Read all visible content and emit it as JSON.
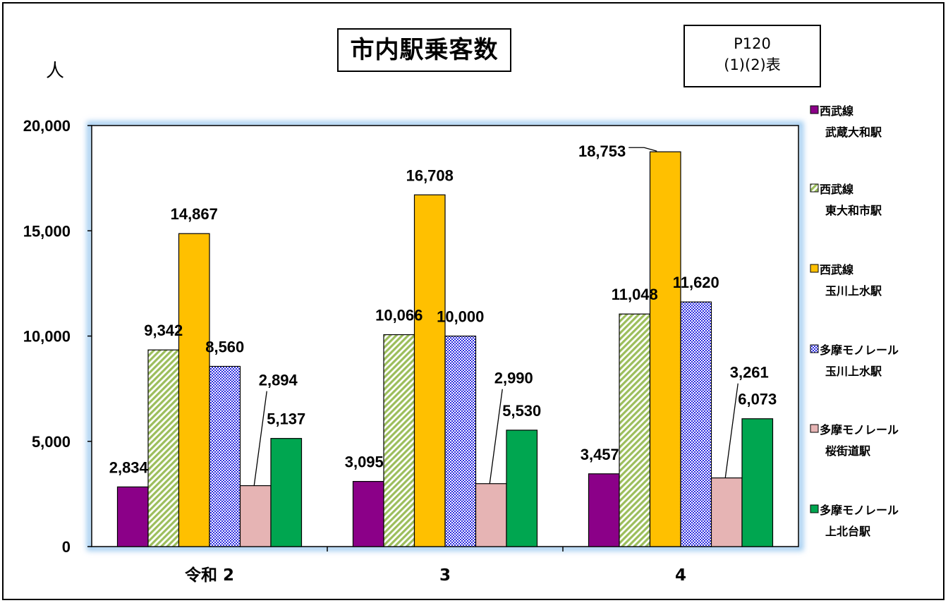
{
  "header": {
    "title": "市内駅乗客数",
    "ref_line1": "P120",
    "ref_line2": "(1)(2)表",
    "unit": "人"
  },
  "chart_data": {
    "type": "bar",
    "title": "市内駅乗客数",
    "ylabel": "人",
    "ylim": [
      0,
      20000
    ],
    "yticks": [
      0,
      5000,
      10000,
      15000,
      20000
    ],
    "ytick_labels": [
      "0",
      "5,000",
      "10,000",
      "15,000",
      "20,000"
    ],
    "categories": [
      "令和 2",
      "3",
      "4"
    ],
    "legend_position": "right",
    "series": [
      {
        "name_line1": "西武線",
        "name_line2": "武蔵大和駅",
        "color": "#8B0088",
        "values": [
          2834,
          3095,
          3457
        ],
        "labels": [
          "2,834",
          "3,095",
          "3,457"
        ]
      },
      {
        "name_line1": "西武線",
        "name_line2": "東大和市駅",
        "color": "#A6C86A",
        "values": [
          9342,
          10066,
          11048
        ],
        "labels": [
          "9,342",
          "10,066",
          "11,048"
        ]
      },
      {
        "name_line1": "西武線",
        "name_line2": "玉川上水駅",
        "color": "#FFC000",
        "values": [
          14867,
          16708,
          18753
        ],
        "labels": [
          "14,867",
          "16,708",
          "18,753"
        ]
      },
      {
        "name_line1": "多摩モノレール",
        "name_line2": "玉川上水駅",
        "color": "#4040E0",
        "values": [
          8560,
          10000,
          11620
        ],
        "labels": [
          "8,560",
          "10,000",
          "11,620"
        ]
      },
      {
        "name_line1": "多摩モノレール",
        "name_line2": "桜街道駅",
        "color": "#E6B4B4",
        "values": [
          2894,
          2990,
          3261
        ],
        "labels": [
          "2,894",
          "2,990",
          "3,261"
        ]
      },
      {
        "name_line1": "多摩モノレール",
        "name_line2": "上北台駅",
        "color": "#00A650",
        "values": [
          5137,
          5530,
          6073
        ],
        "labels": [
          "5,137",
          "5,530",
          "6,073"
        ]
      }
    ]
  }
}
